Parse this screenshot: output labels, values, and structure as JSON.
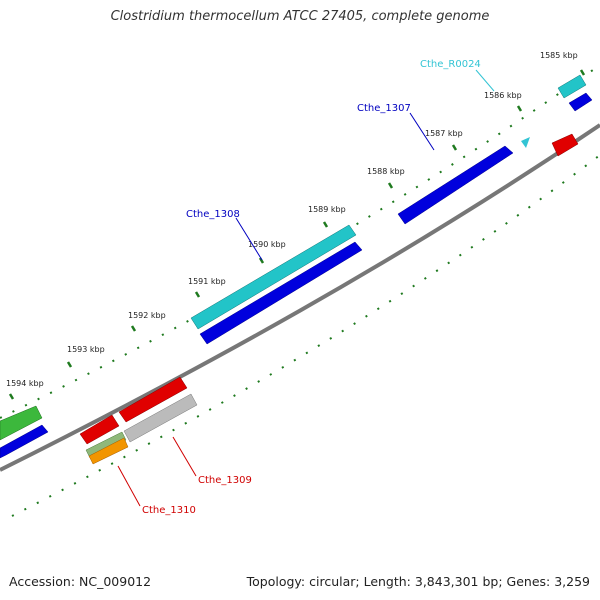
{
  "title": "Clostridium thermocellum ATCC 27405, complete genome",
  "footer": {
    "accession": "Accession: NC_009012",
    "summary": "Topology: circular; Length: 3,843,301 bp; Genes: 3,259"
  },
  "ruler_ticks": [
    {
      "label": "1585 kbp"
    },
    {
      "label": "1586 kbp"
    },
    {
      "label": "1587 kbp"
    },
    {
      "label": "1588 kbp"
    },
    {
      "label": "1589 kbp"
    },
    {
      "label": "1590 kbp"
    },
    {
      "label": "1591 kbp"
    },
    {
      "label": "1592 kbp"
    },
    {
      "label": "1593 kbp"
    },
    {
      "label": "1594 kbp"
    }
  ],
  "gene_labels": [
    {
      "name": "Cthe_R0024",
      "color": "#33c4d4"
    },
    {
      "name": "Cthe_1307",
      "color": "#0000c0"
    },
    {
      "name": "Cthe_1308",
      "color": "#0000c0"
    },
    {
      "name": "Cthe_1309",
      "color": "#d00000"
    },
    {
      "name": "Cthe_1310",
      "color": "#d00000"
    }
  ],
  "feature_colors": {
    "backbone": "#777777",
    "tick": "#1f7a1f",
    "cds_forward": "#0000e0",
    "cds_reverse": "#e00000",
    "rna": "#22c4c8",
    "other": "#3cb83c",
    "pseudo": "#bbbbbb"
  }
}
